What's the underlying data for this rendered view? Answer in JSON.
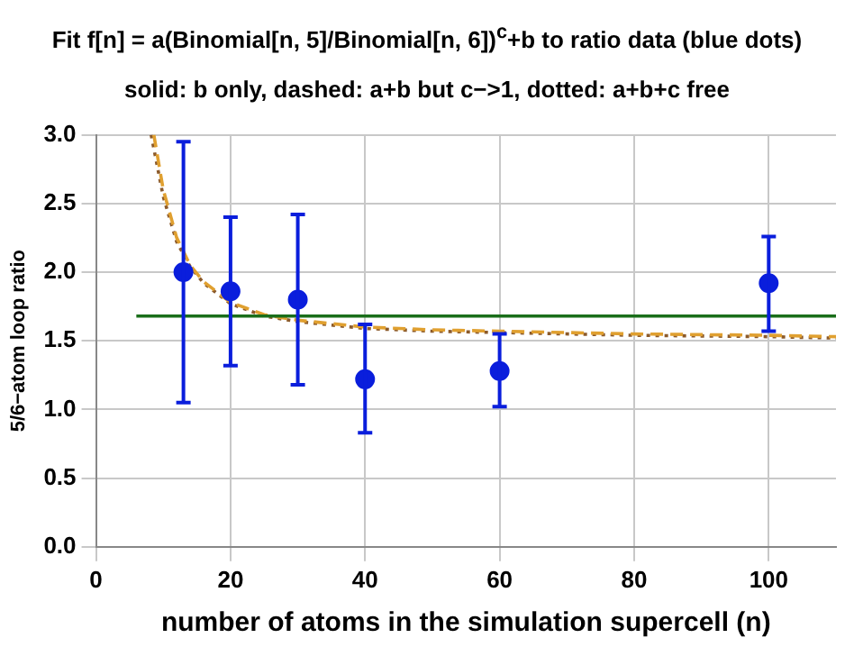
{
  "chart_data": {
    "type": "scatter",
    "title": "Fit f[n] = a(Binomial[n, 5]/Binomial[n, 6])$^{c}$+b to ratio data (blue dots)",
    "subtitle": "solid: b only, dashed: a+b but c−>1, dotted: a+b+c free",
    "xlabel": "number of atoms in the simulation supercell (n)",
    "ylabel": "5/6−atom loop ratio",
    "xlim": [
      0,
      110
    ],
    "ylim": [
      0,
      3
    ],
    "xticks": [
      0,
      20,
      40,
      60,
      80,
      100
    ],
    "yticks": [
      {
        "value": 0,
        "label": "0.0"
      },
      0.5,
      {
        "value": 1,
        "label": "1.0"
      },
      1.5,
      {
        "value": 2,
        "label": "2.0"
      },
      2.5,
      {
        "value": 3,
        "label": "3.0"
      }
    ],
    "grid": true,
    "legend": false,
    "series": [
      {
        "marker": "circle",
        "color": "#0a1edc",
        "x": [
          13,
          20,
          30,
          40,
          60,
          100
        ],
        "values": [
          2.0,
          1.86,
          1.8,
          1.22,
          1.28,
          1.92
        ],
        "errors": [
          [
            1.05,
            2.95
          ],
          [
            1.32,
            2.4
          ],
          [
            1.18,
            2.42
          ],
          [
            0.83,
            1.62
          ],
          [
            1.02,
            1.55
          ],
          [
            1.57,
            2.26
          ]
        ]
      },
      {
        "type": "line",
        "marker": "none",
        "color": "#1a6e1a",
        "line_style": "solid",
        "x": [
          6,
          110
        ],
        "values": [
          1.68,
          1.68
        ]
      },
      {
        "type": "line",
        "marker": "none",
        "color": "#e0a030",
        "line_style": "dashed",
        "x": [
          8.6,
          10,
          12,
          14,
          16,
          20,
          25,
          30,
          40,
          50,
          60,
          80,
          100,
          110
        ],
        "values": [
          3.0,
          2.6,
          2.25,
          2.05,
          1.93,
          1.78,
          1.69,
          1.65,
          1.6,
          1.58,
          1.57,
          1.55,
          1.54,
          1.53
        ]
      },
      {
        "type": "line",
        "marker": "none",
        "color": "#8b5a2b",
        "line_style": "dotted",
        "x": [
          8.2,
          10,
          12,
          14,
          16,
          20,
          25,
          30,
          40,
          50,
          60,
          80,
          100,
          110
        ],
        "values": [
          3.0,
          2.55,
          2.22,
          2.04,
          1.92,
          1.77,
          1.68,
          1.64,
          1.59,
          1.57,
          1.56,
          1.54,
          1.53,
          1.52
        ]
      }
    ]
  }
}
